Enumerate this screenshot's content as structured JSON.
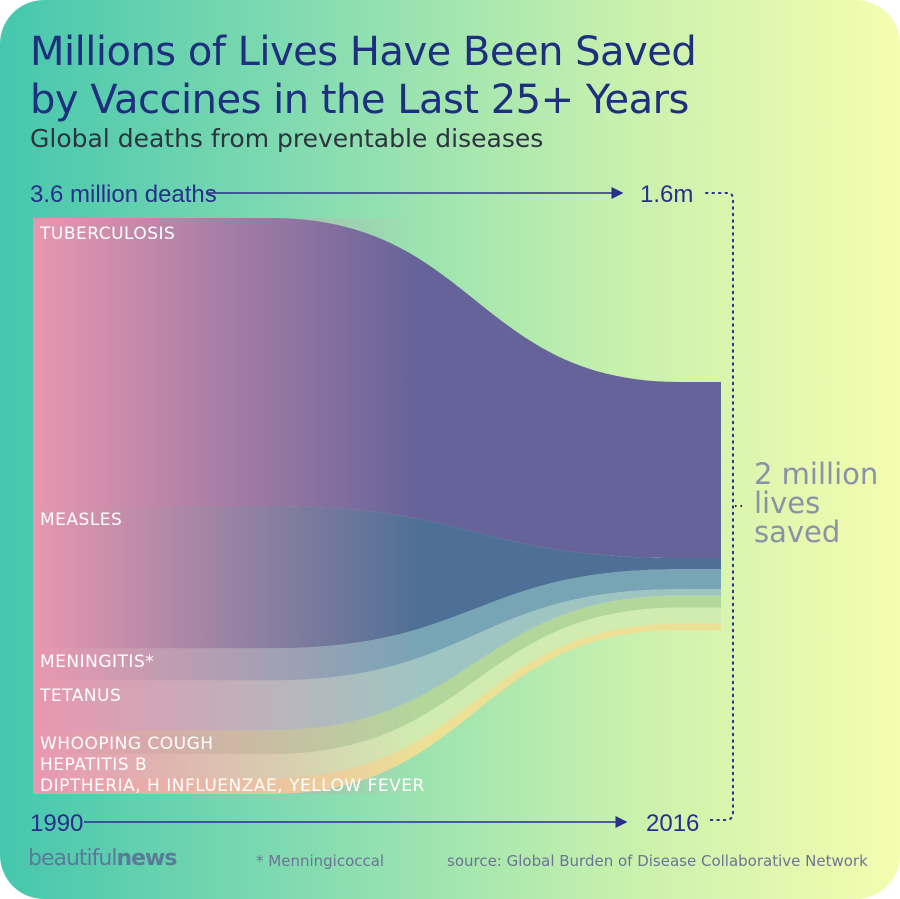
{
  "title_line1": "Millions of Lives Have Been Saved",
  "title_line2": "by Vaccines in the Last 25+ Years",
  "subtitle": "Global deaths from preventable diseases",
  "top_axis": {
    "start_label": "3.6 million deaths",
    "end_label": "1.6m"
  },
  "bottom_axis": {
    "start_label": "1990",
    "end_label": "2016"
  },
  "annotation": {
    "line1": "2 million",
    "line2": "lives",
    "line3": "saved"
  },
  "footnote": "* Menningicoccal",
  "source": "source: Global Burden of Disease Collaborative Network",
  "brand": {
    "part1": "beautiful",
    "part2": "news"
  },
  "colors": {
    "left_tint": "#e897b0",
    "title": "#1e2f7d",
    "axis": "#2a2e8c"
  },
  "chart_data": {
    "type": "area",
    "title": "Millions of Lives Have Been Saved by Vaccines in the Last 25+ Years",
    "subtitle": "Global deaths from preventable diseases",
    "units": "million deaths",
    "x": [
      "1990",
      "2016"
    ],
    "totals": [
      3.6,
      1.6
    ],
    "series": [
      {
        "name": "TUBERCULOSIS",
        "values": [
          1.8,
          1.1
        ],
        "color": "#65639a"
      },
      {
        "name": "MEASLES",
        "values": [
          0.89,
          0.07
        ],
        "color": "#4e6f96"
      },
      {
        "name": "MENINGITIS*",
        "values": [
          0.2,
          0.125
        ],
        "color": "#78a5b6"
      },
      {
        "name": "TETANUS",
        "values": [
          0.31,
          0.04
        ],
        "color": "#9fc5c2"
      },
      {
        "name": "WHOOPING COUGH",
        "values": [
          0.15,
          0.075
        ],
        "color": "#b3d69b"
      },
      {
        "name": "HEPATITIS B",
        "values": [
          0.15,
          0.1
        ],
        "color": "#d0ecb0"
      },
      {
        "name": "DIPTHERIA, H INFLUENZAE, YELLOW FEVER",
        "values": [
          0.1,
          0.04
        ],
        "color": "#ecdf96"
      }
    ]
  }
}
